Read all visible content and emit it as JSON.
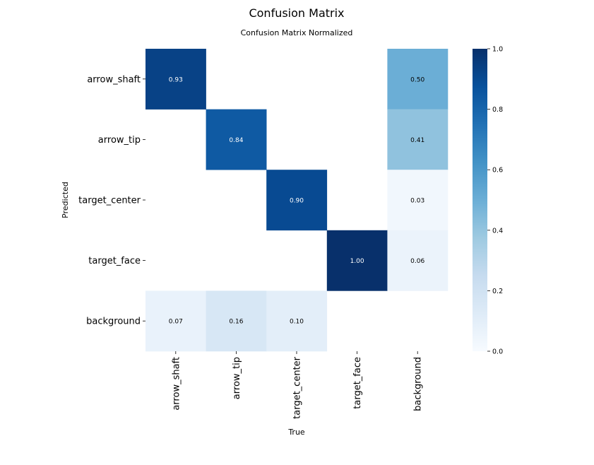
{
  "chart_data": {
    "type": "heatmap",
    "title": "Confusion Matrix",
    "subtitle": "Confusion Matrix Normalized",
    "xlabel": "True",
    "ylabel": "Predicted",
    "x_categories": [
      "arrow_shaft",
      "arrow_tip",
      "target_center",
      "target_face",
      "background"
    ],
    "y_categories": [
      "arrow_shaft",
      "arrow_tip",
      "target_center",
      "target_face",
      "background"
    ],
    "values": [
      [
        0.93,
        null,
        null,
        null,
        0.5
      ],
      [
        null,
        0.84,
        null,
        null,
        0.41
      ],
      [
        null,
        null,
        0.9,
        null,
        0.03
      ],
      [
        null,
        null,
        null,
        1.0,
        0.06
      ],
      [
        0.07,
        0.16,
        0.1,
        null,
        null
      ]
    ],
    "value_format": "2 decimals",
    "colorbar": {
      "range": [
        0.0,
        1.0
      ],
      "ticks": [
        "0.0",
        "0.2",
        "0.4",
        "0.6",
        "0.8",
        "1.0"
      ],
      "colormap": [
        "#f7fbff",
        "#deebf7",
        "#c6dbef",
        "#9ecae1",
        "#6baed6",
        "#4292c6",
        "#2171b5",
        "#08519c",
        "#08306b"
      ]
    }
  }
}
